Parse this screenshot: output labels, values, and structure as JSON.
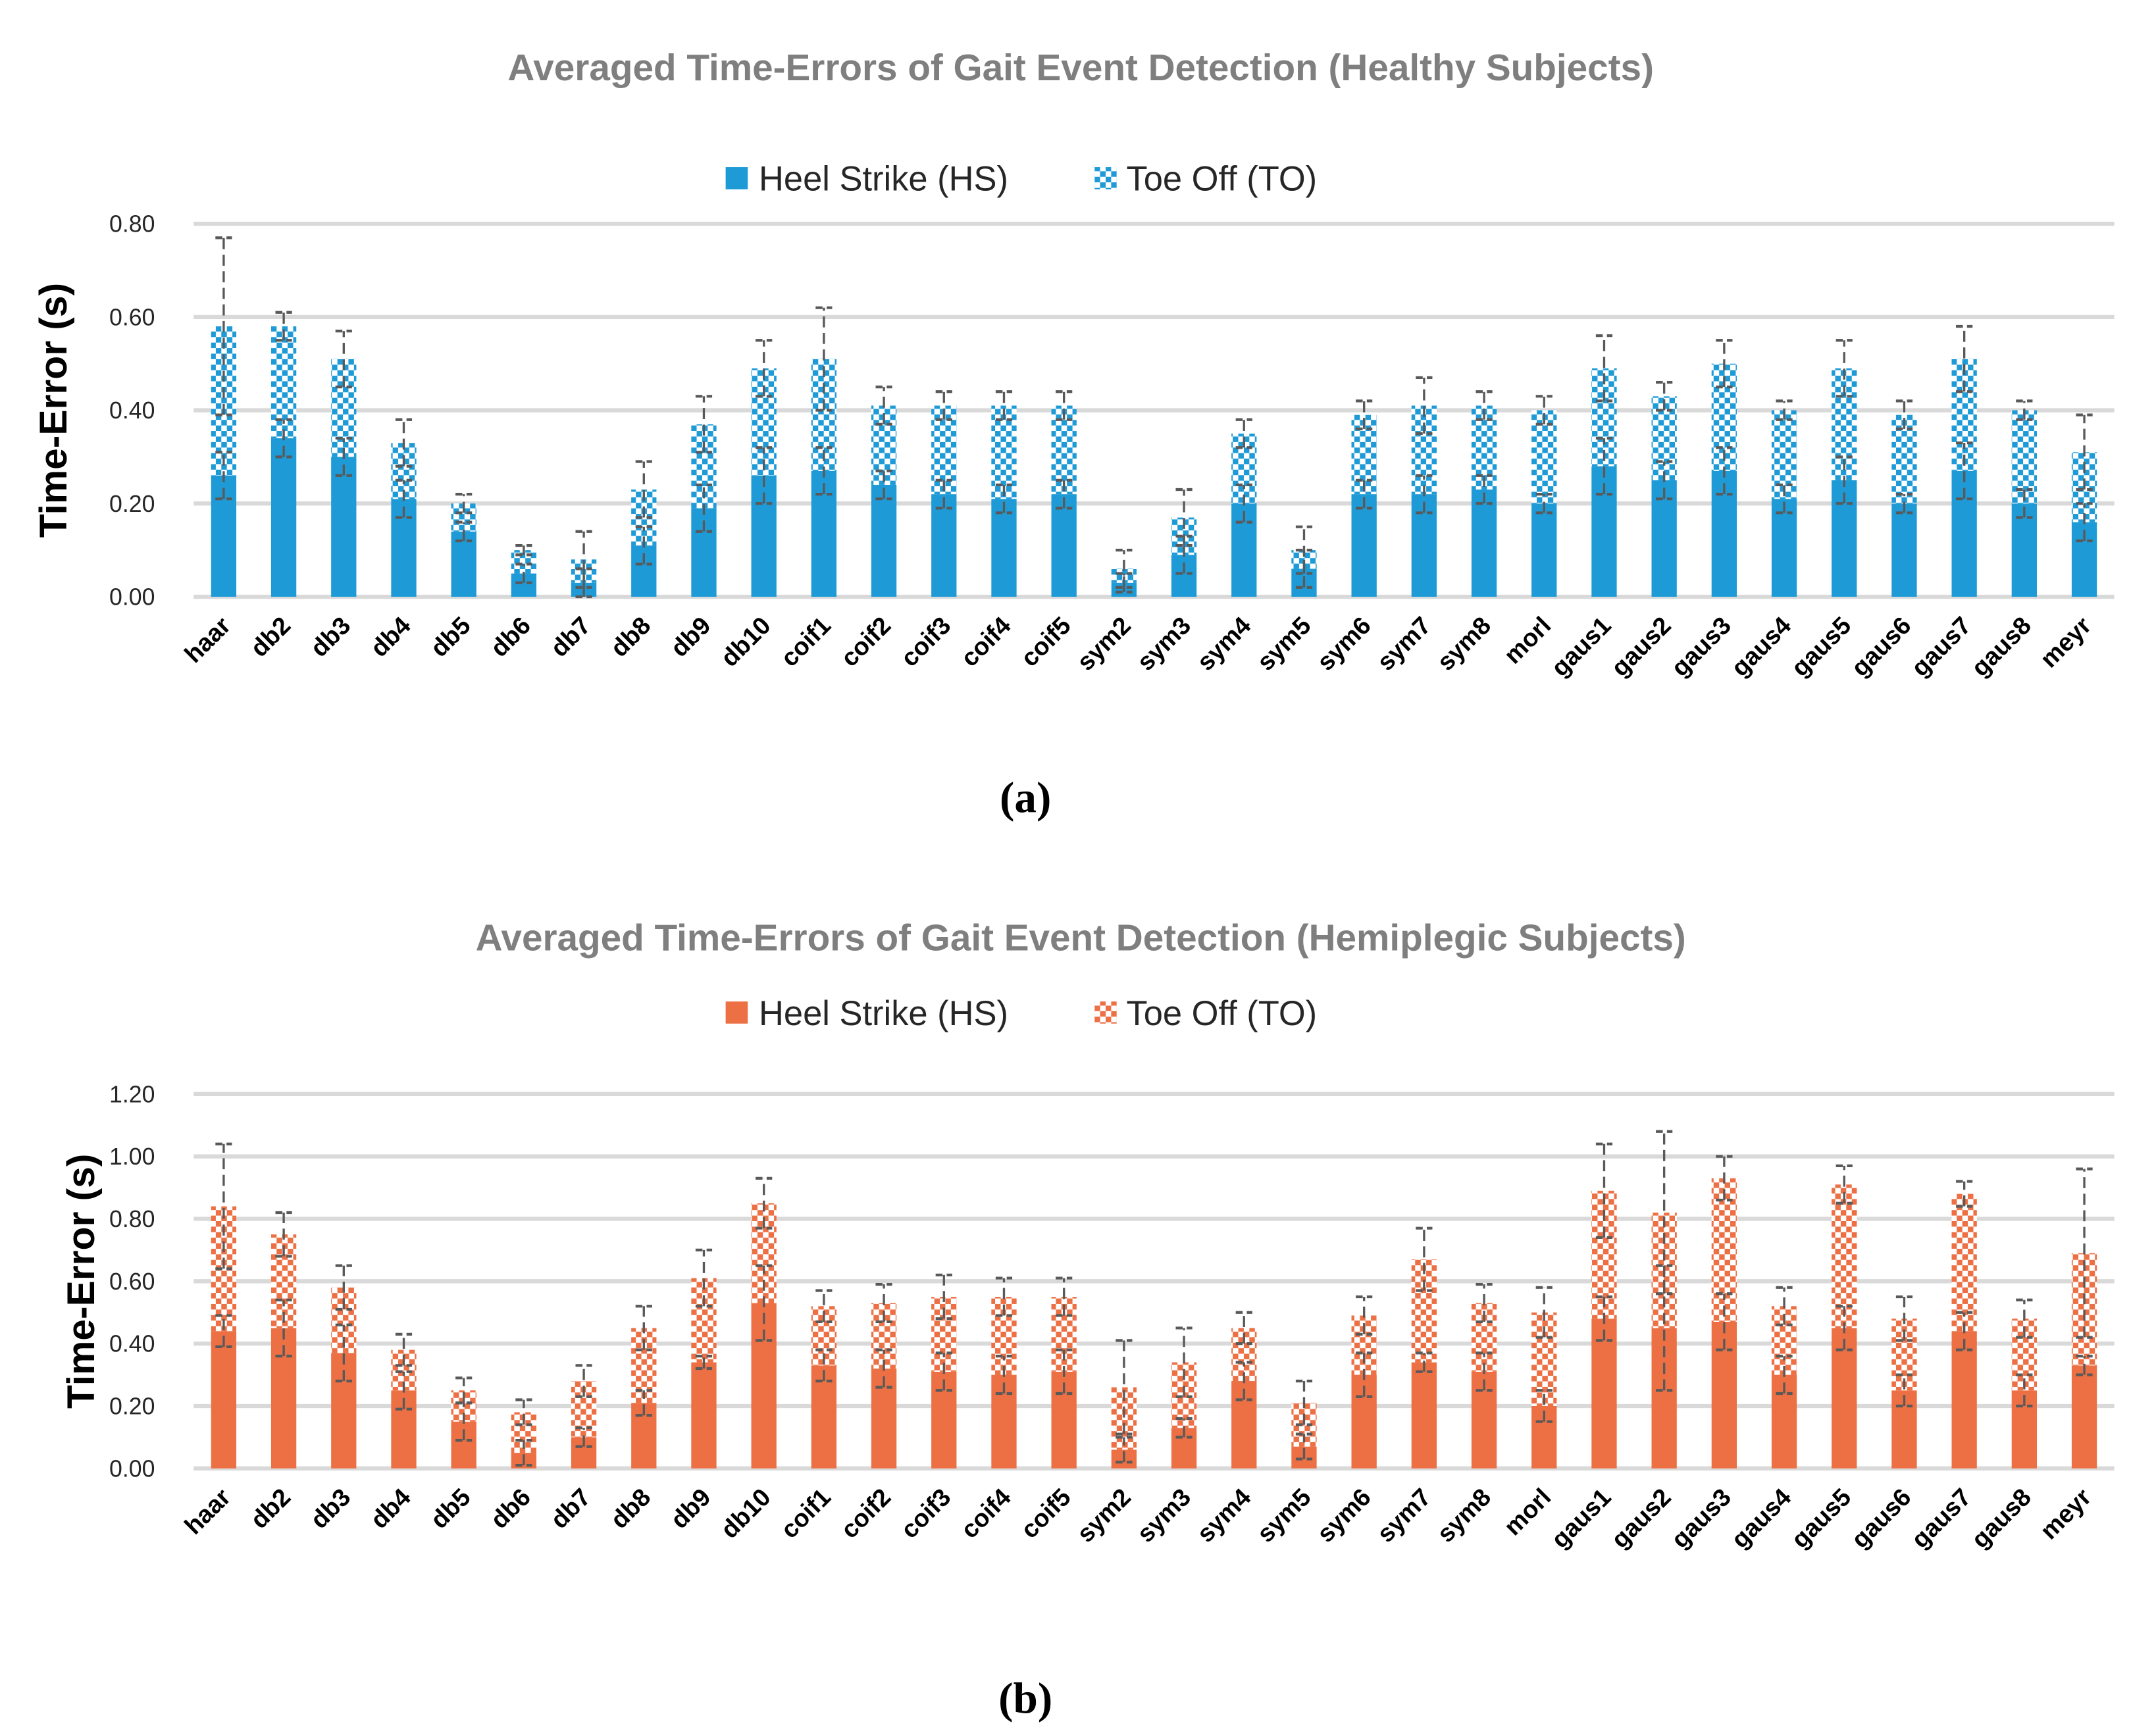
{
  "chart_data": [
    {
      "type": "bar",
      "stacked": true,
      "title": "Averaged Time-Errors of Gait Event Detection (Healthy Subjects)",
      "panel_label": "(a)",
      "xlabel": "",
      "ylabel": "Time-Error (s)",
      "ylim": [
        0,
        0.8
      ],
      "yticks": [
        "0.00",
        "0.20",
        "0.40",
        "0.60",
        "0.80"
      ],
      "grid": true,
      "legend_position": "top-center",
      "colors": {
        "hs": "#1e9bd7",
        "to": "#1e9bd7",
        "error": "#595959"
      },
      "categories": [
        "haar",
        "db2",
        "db3",
        "db4",
        "db5",
        "db6",
        "db7",
        "db8",
        "db9",
        "db10",
        "coif1",
        "coif2",
        "coif3",
        "coif4",
        "coif5",
        "sym2",
        "sym3",
        "sym4",
        "sym5",
        "sym6",
        "sym7",
        "sym8",
        "morl",
        "gaus1",
        "gaus2",
        "gaus3",
        "gaus4",
        "gaus5",
        "gaus6",
        "gaus7",
        "gaus8",
        "meyr"
      ],
      "series": [
        {
          "name": "Heel Strike (HS)",
          "pattern": "solid",
          "values": [
            0.26,
            0.34,
            0.3,
            0.21,
            0.14,
            0.05,
            0.03,
            0.11,
            0.19,
            0.26,
            0.27,
            0.24,
            0.22,
            0.21,
            0.22,
            0.03,
            0.09,
            0.2,
            0.06,
            0.22,
            0.22,
            0.23,
            0.2,
            0.28,
            0.25,
            0.27,
            0.21,
            0.25,
            0.2,
            0.27,
            0.2,
            0.16
          ],
          "errors": [
            0.05,
            0.04,
            0.04,
            0.04,
            0.02,
            0.02,
            0.03,
            0.04,
            0.05,
            0.06,
            0.05,
            0.03,
            0.03,
            0.03,
            0.03,
            0.02,
            0.04,
            0.04,
            0.04,
            0.03,
            0.04,
            0.03,
            0.02,
            0.06,
            0.04,
            0.05,
            0.03,
            0.05,
            0.02,
            0.06,
            0.03,
            0.04
          ]
        },
        {
          "name": "Toe Off (TO)",
          "pattern": "checkered",
          "values": [
            0.32,
            0.24,
            0.21,
            0.12,
            0.06,
            0.05,
            0.05,
            0.12,
            0.18,
            0.23,
            0.24,
            0.17,
            0.19,
            0.2,
            0.19,
            0.03,
            0.08,
            0.15,
            0.04,
            0.17,
            0.19,
            0.18,
            0.2,
            0.21,
            0.18,
            0.23,
            0.19,
            0.24,
            0.19,
            0.24,
            0.2,
            0.15
          ],
          "errors": [
            0.19,
            0.03,
            0.06,
            0.05,
            0.02,
            0.01,
            0.06,
            0.06,
            0.06,
            0.06,
            0.11,
            0.04,
            0.03,
            0.03,
            0.03,
            0.04,
            0.06,
            0.03,
            0.05,
            0.03,
            0.06,
            0.03,
            0.03,
            0.07,
            0.03,
            0.05,
            0.02,
            0.06,
            0.03,
            0.07,
            0.02,
            0.08
          ]
        }
      ]
    },
    {
      "type": "bar",
      "stacked": true,
      "title": "Averaged Time-Errors of Gait Event Detection (Hemiplegic Subjects)",
      "panel_label": "(b)",
      "xlabel": "",
      "ylabel": "Time-Error (s)",
      "ylim": [
        0,
        1.2
      ],
      "yticks": [
        "0.00",
        "0.20",
        "0.40",
        "0.60",
        "0.80",
        "1.00",
        "1.20"
      ],
      "grid": true,
      "legend_position": "top-center",
      "colors": {
        "hs": "#ec7044",
        "to": "#ec7044",
        "error": "#595959"
      },
      "categories": [
        "haar",
        "db2",
        "db3",
        "db4",
        "db5",
        "db6",
        "db7",
        "db8",
        "db9",
        "db10",
        "coif1",
        "coif2",
        "coif3",
        "coif4",
        "coif5",
        "sym2",
        "sym3",
        "sym4",
        "sym5",
        "sym6",
        "sym7",
        "sym8",
        "morl",
        "gaus1",
        "gaus2",
        "gaus3",
        "gaus4",
        "gaus5",
        "gaus6",
        "gaus7",
        "gaus8",
        "meyr"
      ],
      "series": [
        {
          "name": "Heel Strike (HS)",
          "pattern": "solid",
          "values": [
            0.44,
            0.45,
            0.37,
            0.25,
            0.15,
            0.05,
            0.1,
            0.21,
            0.34,
            0.53,
            0.33,
            0.32,
            0.31,
            0.3,
            0.31,
            0.06,
            0.13,
            0.28,
            0.07,
            0.3,
            0.34,
            0.31,
            0.2,
            0.48,
            0.45,
            0.47,
            0.3,
            0.45,
            0.25,
            0.44,
            0.25,
            0.33
          ],
          "errors": [
            0.05,
            0.09,
            0.09,
            0.06,
            0.06,
            0.04,
            0.03,
            0.04,
            0.02,
            0.12,
            0.05,
            0.06,
            0.06,
            0.06,
            0.07,
            0.04,
            0.03,
            0.06,
            0.04,
            0.07,
            0.03,
            0.06,
            0.05,
            0.07,
            0.2,
            0.09,
            0.06,
            0.07,
            0.05,
            0.06,
            0.05,
            0.03
          ]
        },
        {
          "name": "Toe Off (TO)",
          "pattern": "checkered",
          "values": [
            0.4,
            0.3,
            0.21,
            0.13,
            0.1,
            0.13,
            0.18,
            0.24,
            0.27,
            0.32,
            0.19,
            0.21,
            0.24,
            0.25,
            0.24,
            0.2,
            0.21,
            0.17,
            0.14,
            0.19,
            0.33,
            0.22,
            0.3,
            0.41,
            0.37,
            0.46,
            0.22,
            0.46,
            0.23,
            0.44,
            0.23,
            0.36
          ],
          "errors": [
            0.2,
            0.07,
            0.07,
            0.05,
            0.04,
            0.04,
            0.05,
            0.07,
            0.09,
            0.08,
            0.05,
            0.06,
            0.07,
            0.06,
            0.06,
            0.15,
            0.11,
            0.05,
            0.07,
            0.06,
            0.1,
            0.06,
            0.08,
            0.15,
            0.26,
            0.07,
            0.06,
            0.06,
            0.07,
            0.04,
            0.06,
            0.27
          ]
        }
      ]
    }
  ]
}
